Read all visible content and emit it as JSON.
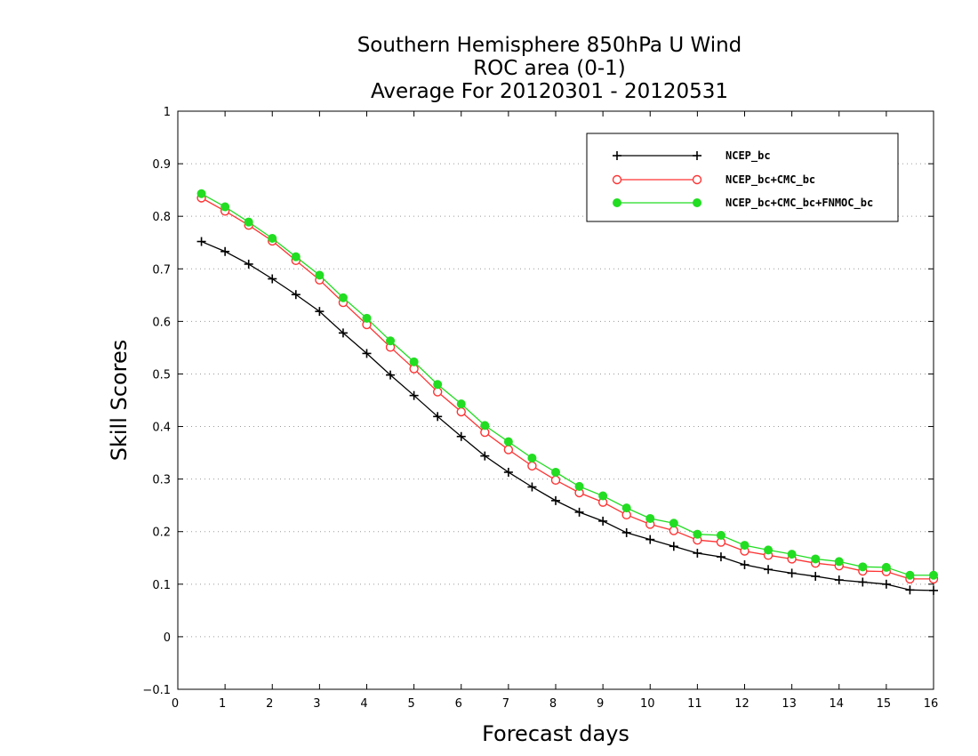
{
  "chart_data": {
    "type": "line",
    "title": [
      "Southern Hemisphere 850hPa U Wind",
      "ROC area (0-1)",
      "Average For 20120301 - 20120531"
    ],
    "xlabel": "Forecast days",
    "ylabel": "Skill Scores",
    "xlim": [
      0,
      16
    ],
    "ylim": [
      -0.1,
      1
    ],
    "x_ticks": [
      0,
      1,
      2,
      3,
      4,
      5,
      6,
      7,
      8,
      9,
      10,
      11,
      12,
      13,
      14,
      15,
      16
    ],
    "y_ticks": [
      -0.1,
      0,
      0.1,
      0.2,
      0.3,
      0.4,
      0.5,
      0.6,
      0.7,
      0.8,
      0.9,
      1
    ],
    "y_tick_labels": [
      "−0.1",
      "0",
      "0.1",
      "0.2",
      "0.3",
      "0.4",
      "0.5",
      "0.6",
      "0.7",
      "0.8",
      "0.9",
      "1"
    ],
    "grid": "horizontal dotted",
    "legend_position": "top-right",
    "x": [
      0.5,
      1,
      1.5,
      2,
      2.5,
      3,
      3.5,
      4,
      4.5,
      5,
      5.5,
      6,
      6.5,
      7,
      7.5,
      8,
      8.5,
      9,
      9.5,
      10,
      10.5,
      11,
      11.5,
      12,
      12.5,
      13,
      13.5,
      14,
      14.5,
      15,
      15.5,
      16
    ],
    "series": [
      {
        "name": "NCEP_bc",
        "color": "#000000",
        "marker": "plus",
        "values": [
          0.752,
          0.733,
          0.709,
          0.681,
          0.651,
          0.619,
          0.578,
          0.539,
          0.498,
          0.459,
          0.419,
          0.381,
          0.344,
          0.313,
          0.285,
          0.259,
          0.237,
          0.22,
          0.198,
          0.185,
          0.172,
          0.159,
          0.152,
          0.137,
          0.128,
          0.121,
          0.115,
          0.108,
          0.104,
          0.1,
          0.089,
          0.088
        ]
      },
      {
        "name": "NCEP_bc+CMC_bc",
        "color": "#ff3333",
        "marker": "open-circle",
        "values": [
          0.835,
          0.81,
          0.783,
          0.753,
          0.716,
          0.679,
          0.636,
          0.594,
          0.551,
          0.51,
          0.466,
          0.428,
          0.389,
          0.356,
          0.325,
          0.298,
          0.274,
          0.256,
          0.232,
          0.214,
          0.202,
          0.184,
          0.18,
          0.163,
          0.155,
          0.148,
          0.14,
          0.135,
          0.125,
          0.124,
          0.11,
          0.11
        ]
      },
      {
        "name": "NCEP_bc+CMC_bc+FNMOC_bc",
        "color": "#22dd22",
        "marker": "filled-circle",
        "values": [
          0.843,
          0.818,
          0.789,
          0.758,
          0.723,
          0.688,
          0.645,
          0.606,
          0.563,
          0.523,
          0.48,
          0.443,
          0.402,
          0.371,
          0.34,
          0.313,
          0.286,
          0.268,
          0.245,
          0.225,
          0.216,
          0.195,
          0.193,
          0.174,
          0.165,
          0.157,
          0.148,
          0.143,
          0.133,
          0.132,
          0.117,
          0.117
        ]
      }
    ]
  }
}
